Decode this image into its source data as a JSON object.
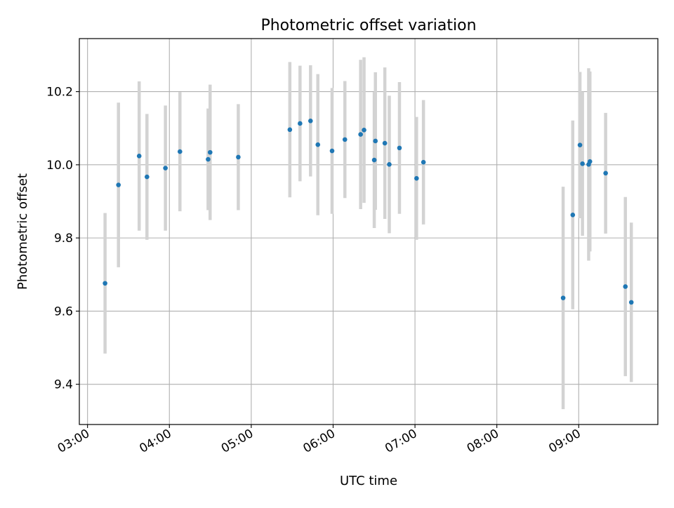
{
  "chart_data": {
    "type": "scatter",
    "title": "Photometric offset variation",
    "xlabel": "UTC time",
    "ylabel": "Photometric offset",
    "xlim": [
      "02:54",
      "09:58"
    ],
    "ylim": [
      9.29,
      10.345
    ],
    "x_ticks": [
      "03:00",
      "04:00",
      "05:00",
      "06:00",
      "07:00",
      "08:00",
      "09:00"
    ],
    "y_ticks": [
      9.4,
      9.6,
      9.8,
      10.0,
      10.2
    ],
    "y_tick_labels": [
      "9.4",
      "9.6",
      "9.8",
      "10.0",
      "10.2"
    ],
    "grid": true,
    "colors": {
      "marker": "#1f77b4",
      "errorbar": "#d3d3d3",
      "grid": "#b0b0b0"
    },
    "points": [
      {
        "t": "03:12:51",
        "y": 9.676,
        "err": 0.192
      },
      {
        "t": "03:22:40",
        "y": 9.945,
        "err": 0.225
      },
      {
        "t": "03:37:51",
        "y": 10.024,
        "err": 0.204
      },
      {
        "t": "03:43:34",
        "y": 9.967,
        "err": 0.172
      },
      {
        "t": "03:57:06",
        "y": 9.991,
        "err": 0.171
      },
      {
        "t": "04:07:44",
        "y": 10.036,
        "err": 0.163
      },
      {
        "t": "04:28:23",
        "y": 10.015,
        "err": 0.139
      },
      {
        "t": "04:29:51",
        "y": 10.034,
        "err": 0.185
      },
      {
        "t": "04:50:30",
        "y": 10.021,
        "err": 0.145
      },
      {
        "t": "05:28:17",
        "y": 10.096,
        "err": 0.185
      },
      {
        "t": "05:35:45",
        "y": 10.113,
        "err": 0.158
      },
      {
        "t": "05:43:26",
        "y": 10.12,
        "err": 0.152
      },
      {
        "t": "05:48:49",
        "y": 10.055,
        "err": 0.193
      },
      {
        "t": "05:59:14",
        "y": 10.038,
        "err": 0.172
      },
      {
        "t": "06:08:38",
        "y": 10.069,
        "err": 0.16
      },
      {
        "t": "06:20:09",
        "y": 10.083,
        "err": 0.204
      },
      {
        "t": "06:22:40",
        "y": 10.095,
        "err": 0.199
      },
      {
        "t": "06:30:09",
        "y": 10.013,
        "err": 0.186
      },
      {
        "t": "06:31:00",
        "y": 10.065,
        "err": 0.188
      },
      {
        "t": "06:37:54",
        "y": 10.059,
        "err": 0.207
      },
      {
        "t": "06:41:10",
        "y": 10.001,
        "err": 0.188
      },
      {
        "t": "06:48:37",
        "y": 10.046,
        "err": 0.18
      },
      {
        "t": "07:01:09",
        "y": 9.963,
        "err": 0.168
      },
      {
        "t": "07:06:12",
        "y": 10.007,
        "err": 0.17
      },
      {
        "t": "08:48:35",
        "y": 9.636,
        "err": 0.304
      },
      {
        "t": "08:55:38",
        "y": 9.863,
        "err": 0.258
      },
      {
        "t": "09:00:55",
        "y": 10.054,
        "err": 0.2
      },
      {
        "t": "09:02:45",
        "y": 10.003,
        "err": 0.197
      },
      {
        "t": "09:07:18",
        "y": 10.001,
        "err": 0.263
      },
      {
        "t": "09:08:13",
        "y": 10.009,
        "err": 0.246
      },
      {
        "t": "09:19:44",
        "y": 9.977,
        "err": 0.165
      },
      {
        "t": "09:34:12",
        "y": 9.667,
        "err": 0.245
      },
      {
        "t": "09:38:33",
        "y": 9.624,
        "err": 0.218
      }
    ]
  }
}
